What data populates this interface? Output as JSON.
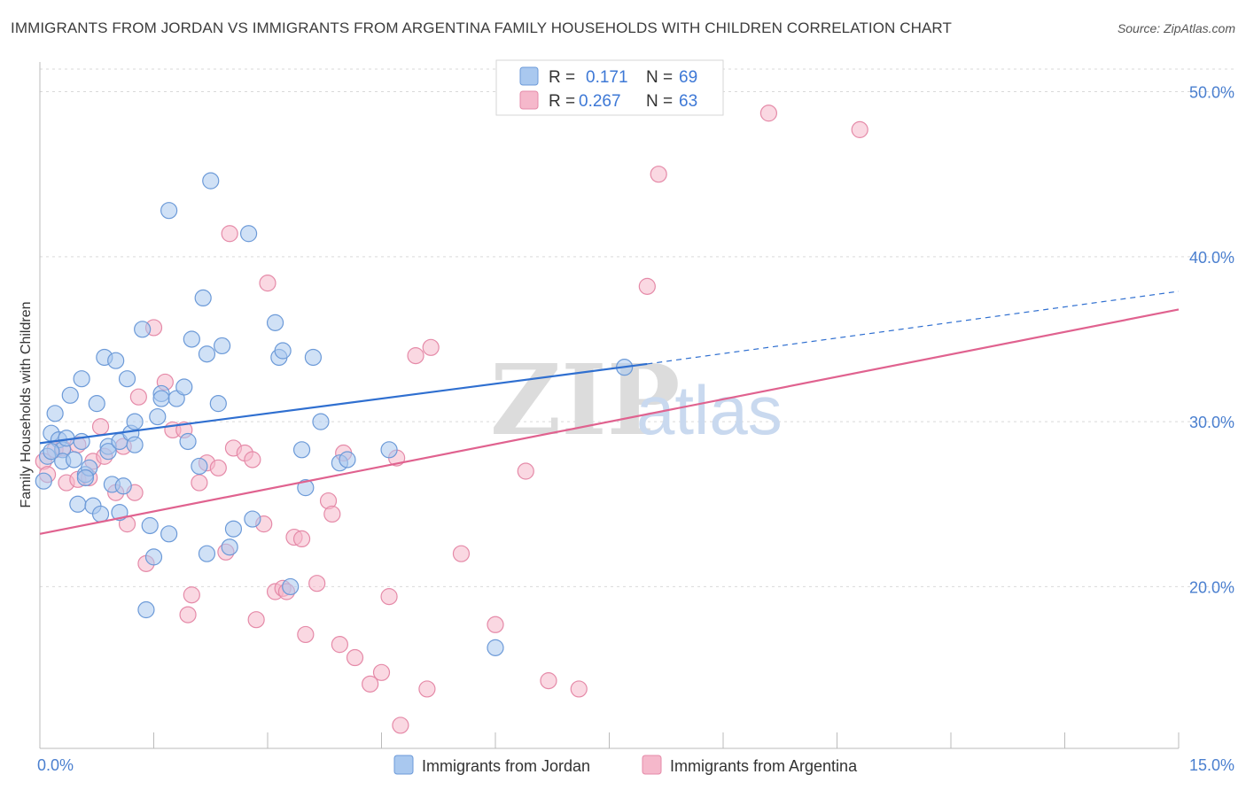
{
  "title": "IMMIGRANTS FROM JORDAN VS IMMIGRANTS FROM ARGENTINA FAMILY HOUSEHOLDS WITH CHILDREN CORRELATION CHART",
  "source": "Source: ZipAtlas.com",
  "watermark": {
    "zip": "ZIP",
    "atlas": "atlas"
  },
  "legend": {
    "r_label": "R =",
    "n_label": "N =",
    "jordan": {
      "r": "0.171",
      "n": "69"
    },
    "argentina": {
      "r": "0.267",
      "n": "63"
    }
  },
  "bottom_legend": {
    "jordan": "Immigrants from Jordan",
    "argentina": "Immigrants from Argentina"
  },
  "colors": {
    "jordan_fill": "#a9c8ef",
    "jordan_stroke": "#6c9ad8",
    "jordan_line": "#2f6fd0",
    "argentina_fill": "#f5b8cb",
    "argentina_stroke": "#e58aa8",
    "argentina_line": "#e0628f",
    "tick_text": "#4a7fcf",
    "grid": "#d9d9d9"
  },
  "chart_data": {
    "type": "scatter",
    "xlabel": "",
    "ylabel": "Family Households with Children",
    "xlim": [
      0,
      15
    ],
    "ylim": [
      10.2,
      51.8
    ],
    "x_tick_labels": [
      {
        "value": 0,
        "label": "0.0%"
      },
      {
        "value": 15,
        "label": "15.0%"
      }
    ],
    "y_tick_labels": [
      {
        "value": 20,
        "label": "20.0%"
      },
      {
        "value": 30,
        "label": "30.0%"
      },
      {
        "value": 40,
        "label": "40.0%"
      },
      {
        "value": 50,
        "label": "50.0%"
      }
    ],
    "grid": true,
    "series": [
      {
        "name": "Immigrants from Jordan",
        "color": "#a9c8ef",
        "points": [
          [
            0.05,
            26.4
          ],
          [
            0.1,
            27.9
          ],
          [
            0.15,
            29.3
          ],
          [
            0.2,
            30.5
          ],
          [
            0.25,
            28.9
          ],
          [
            0.3,
            28.3
          ],
          [
            0.3,
            27.6
          ],
          [
            0.35,
            29.0
          ],
          [
            0.4,
            31.6
          ],
          [
            0.45,
            27.7
          ],
          [
            0.5,
            25.0
          ],
          [
            0.55,
            28.8
          ],
          [
            0.55,
            32.6
          ],
          [
            0.6,
            26.8
          ],
          [
            0.65,
            27.2
          ],
          [
            0.7,
            24.9
          ],
          [
            0.75,
            31.1
          ],
          [
            0.8,
            24.4
          ],
          [
            0.85,
            33.9
          ],
          [
            0.9,
            28.5
          ],
          [
            0.9,
            28.2
          ],
          [
            0.95,
            26.2
          ],
          [
            1.0,
            33.7
          ],
          [
            1.05,
            28.8
          ],
          [
            1.1,
            26.1
          ],
          [
            1.15,
            32.6
          ],
          [
            1.2,
            29.3
          ],
          [
            1.25,
            28.6
          ],
          [
            1.25,
            30.0
          ],
          [
            1.35,
            35.6
          ],
          [
            1.4,
            18.6
          ],
          [
            1.45,
            23.7
          ],
          [
            1.5,
            21.8
          ],
          [
            1.55,
            30.3
          ],
          [
            1.6,
            31.7
          ],
          [
            1.6,
            31.4
          ],
          [
            1.7,
            42.8
          ],
          [
            1.7,
            23.2
          ],
          [
            1.8,
            31.4
          ],
          [
            1.9,
            32.1
          ],
          [
            1.95,
            28.8
          ],
          [
            2.0,
            35.0
          ],
          [
            2.1,
            27.3
          ],
          [
            2.15,
            37.5
          ],
          [
            2.2,
            34.1
          ],
          [
            2.25,
            44.6
          ],
          [
            2.35,
            31.1
          ],
          [
            2.4,
            34.6
          ],
          [
            2.5,
            22.4
          ],
          [
            2.55,
            23.5
          ],
          [
            2.75,
            41.4
          ],
          [
            2.8,
            24.1
          ],
          [
            3.1,
            36.0
          ],
          [
            3.15,
            33.9
          ],
          [
            3.2,
            34.3
          ],
          [
            3.3,
            20.0
          ],
          [
            3.45,
            28.3
          ],
          [
            3.5,
            26.0
          ],
          [
            3.6,
            33.9
          ],
          [
            3.7,
            30.0
          ],
          [
            3.95,
            27.5
          ],
          [
            4.05,
            27.7
          ],
          [
            4.6,
            28.3
          ],
          [
            6.0,
            16.3
          ],
          [
            7.7,
            33.3
          ],
          [
            0.15,
            28.2
          ],
          [
            0.6,
            26.6
          ],
          [
            1.05,
            24.5
          ],
          [
            2.2,
            22.0
          ]
        ]
      },
      {
        "name": "Immigrants from Argentina",
        "color": "#f5b8cb",
        "points": [
          [
            0.05,
            27.6
          ],
          [
            0.1,
            26.8
          ],
          [
            0.2,
            28.3
          ],
          [
            0.3,
            28.4
          ],
          [
            0.35,
            26.3
          ],
          [
            0.5,
            28.6
          ],
          [
            0.5,
            26.5
          ],
          [
            0.65,
            26.6
          ],
          [
            0.7,
            27.6
          ],
          [
            0.8,
            29.7
          ],
          [
            0.85,
            27.9
          ],
          [
            1.0,
            25.7
          ],
          [
            1.1,
            28.5
          ],
          [
            1.15,
            23.8
          ],
          [
            1.25,
            25.7
          ],
          [
            1.3,
            31.5
          ],
          [
            1.4,
            21.4
          ],
          [
            1.5,
            35.7
          ],
          [
            1.65,
            32.4
          ],
          [
            1.75,
            29.5
          ],
          [
            1.9,
            29.5
          ],
          [
            1.95,
            18.3
          ],
          [
            2.0,
            19.5
          ],
          [
            2.1,
            26.3
          ],
          [
            2.2,
            27.5
          ],
          [
            2.35,
            27.2
          ],
          [
            2.45,
            22.1
          ],
          [
            2.5,
            41.4
          ],
          [
            2.55,
            28.4
          ],
          [
            2.7,
            28.1
          ],
          [
            2.8,
            27.7
          ],
          [
            2.85,
            18.0
          ],
          [
            2.95,
            23.8
          ],
          [
            3.0,
            38.4
          ],
          [
            3.1,
            19.7
          ],
          [
            3.2,
            19.9
          ],
          [
            3.25,
            19.7
          ],
          [
            3.35,
            23.0
          ],
          [
            3.45,
            22.9
          ],
          [
            3.5,
            17.1
          ],
          [
            3.65,
            20.2
          ],
          [
            3.8,
            25.2
          ],
          [
            3.85,
            24.4
          ],
          [
            3.95,
            16.5
          ],
          [
            4.0,
            28.1
          ],
          [
            4.15,
            15.7
          ],
          [
            4.35,
            14.1
          ],
          [
            4.5,
            14.8
          ],
          [
            4.6,
            19.4
          ],
          [
            4.7,
            27.8
          ],
          [
            4.75,
            11.6
          ],
          [
            4.95,
            34.0
          ],
          [
            5.1,
            13.8
          ],
          [
            5.15,
            34.5
          ],
          [
            5.55,
            22.0
          ],
          [
            6.0,
            17.7
          ],
          [
            6.4,
            27.0
          ],
          [
            6.7,
            14.3
          ],
          [
            7.1,
            13.8
          ],
          [
            8.0,
            38.2
          ],
          [
            8.15,
            45.0
          ],
          [
            9.6,
            48.7
          ],
          [
            10.8,
            47.7
          ]
        ]
      }
    ],
    "trend_lines": [
      {
        "series": "Immigrants from Jordan",
        "x0": 0,
        "y0": 28.7,
        "x1": 8.0,
        "y1": 33.5,
        "dashed_to_x": 15,
        "dashed_to_y": 37.9
      },
      {
        "series": "Immigrants from Argentina",
        "x0": 0,
        "y0": 23.2,
        "x1": 15,
        "y1": 36.8
      }
    ]
  }
}
